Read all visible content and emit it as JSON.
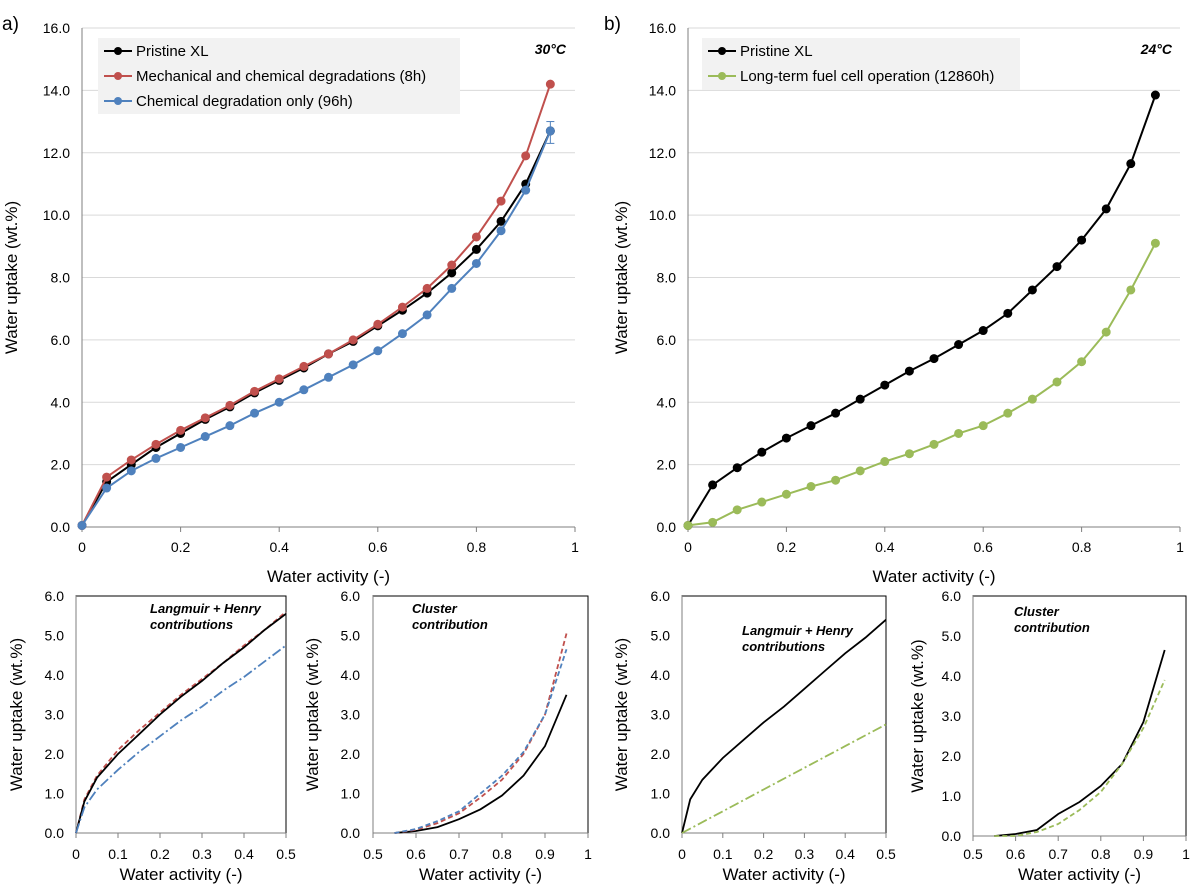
{
  "chart_data": [
    {
      "type": "line",
      "panel_label": "a)",
      "title": "30°C",
      "xlabel": "Water activity (-)",
      "ylabel": "Water uptake (wt.%)",
      "xlim": [
        0,
        1
      ],
      "ylim": [
        0,
        16
      ],
      "x_ticks": [
        "0",
        "0.2",
        "0.4",
        "0.6",
        "0.8",
        "1"
      ],
      "y_ticks": [
        "0.0",
        "2.0",
        "4.0",
        "6.0",
        "8.0",
        "10.0",
        "12.0",
        "14.0",
        "16.0"
      ],
      "grid": "horizontal",
      "legend_position": "top-left",
      "series": [
        {
          "name": "Pristine XL",
          "color": "#000000",
          "x": [
            0,
            0.05,
            0.1,
            0.15,
            0.2,
            0.25,
            0.3,
            0.35,
            0.4,
            0.45,
            0.5,
            0.55,
            0.6,
            0.65,
            0.7,
            0.75,
            0.8,
            0.85,
            0.9,
            0.95
          ],
          "y": [
            0.05,
            1.45,
            2.0,
            2.55,
            3.0,
            3.45,
            3.85,
            4.3,
            4.7,
            5.1,
            5.55,
            5.95,
            6.45,
            6.95,
            7.5,
            8.15,
            8.9,
            9.8,
            11.0,
            12.7
          ]
        },
        {
          "name": "Mechanical and chemical degradations (8h)",
          "color": "#c0504d",
          "x": [
            0,
            0.05,
            0.1,
            0.15,
            0.2,
            0.25,
            0.3,
            0.35,
            0.4,
            0.45,
            0.5,
            0.55,
            0.6,
            0.65,
            0.7,
            0.75,
            0.8,
            0.85,
            0.9,
            0.95
          ],
          "y": [
            0.05,
            1.6,
            2.15,
            2.65,
            3.1,
            3.5,
            3.9,
            4.35,
            4.75,
            5.15,
            5.55,
            6.0,
            6.5,
            7.05,
            7.65,
            8.4,
            9.3,
            10.45,
            11.9,
            14.2
          ]
        },
        {
          "name": "Chemical degradation only (96h)",
          "color": "#4f81bd",
          "x": [
            0,
            0.05,
            0.1,
            0.15,
            0.2,
            0.25,
            0.3,
            0.35,
            0.4,
            0.45,
            0.5,
            0.55,
            0.6,
            0.65,
            0.7,
            0.75,
            0.8,
            0.85,
            0.9,
            0.95
          ],
          "y": [
            0.05,
            1.25,
            1.8,
            2.2,
            2.55,
            2.9,
            3.25,
            3.65,
            4.0,
            4.4,
            4.8,
            5.2,
            5.65,
            6.2,
            6.8,
            7.65,
            8.45,
            9.5,
            10.8,
            12.7
          ]
        }
      ]
    },
    {
      "type": "line",
      "panel_label": "b)",
      "title": "24°C",
      "xlabel": "Water activity (-)",
      "ylabel": "Water uptake (wt.%)",
      "xlim": [
        0,
        1
      ],
      "ylim": [
        0,
        16
      ],
      "x_ticks": [
        "0",
        "0.2",
        "0.4",
        "0.6",
        "0.8",
        "1"
      ],
      "y_ticks": [
        "0.0",
        "2.0",
        "4.0",
        "6.0",
        "8.0",
        "10.0",
        "12.0",
        "14.0",
        "16.0"
      ],
      "grid": "horizontal",
      "legend_position": "top-left",
      "series": [
        {
          "name": "Pristine XL",
          "color": "#000000",
          "x": [
            0,
            0.05,
            0.1,
            0.15,
            0.2,
            0.25,
            0.3,
            0.35,
            0.4,
            0.45,
            0.5,
            0.55,
            0.6,
            0.65,
            0.7,
            0.75,
            0.8,
            0.85,
            0.9,
            0.95
          ],
          "y": [
            0.05,
            1.35,
            1.9,
            2.4,
            2.85,
            3.25,
            3.65,
            4.1,
            4.55,
            5.0,
            5.4,
            5.85,
            6.3,
            6.85,
            7.6,
            8.35,
            9.2,
            10.2,
            11.65,
            13.85
          ]
        },
        {
          "name": "Long-term fuel cell operation (12860h)",
          "color": "#9bbb59",
          "x": [
            0,
            0.05,
            0.1,
            0.15,
            0.2,
            0.25,
            0.3,
            0.35,
            0.4,
            0.45,
            0.5,
            0.55,
            0.6,
            0.65,
            0.7,
            0.75,
            0.8,
            0.85,
            0.9,
            0.95
          ],
          "y": [
            0.05,
            0.15,
            0.55,
            0.8,
            1.05,
            1.3,
            1.5,
            1.8,
            2.1,
            2.35,
            2.65,
            3.0,
            3.25,
            3.65,
            4.1,
            4.65,
            5.3,
            6.25,
            7.6,
            9.1
          ]
        }
      ]
    },
    {
      "type": "line",
      "title": "Langmuir + Henry\ncontributions",
      "xlabel": "Water activity (-)",
      "ylabel": "Water uptake (wt.%)",
      "xlim": [
        0,
        0.5
      ],
      "ylim": [
        0,
        6
      ],
      "x_ticks": [
        "0",
        "0.1",
        "0.2",
        "0.3",
        "0.4",
        "0.5"
      ],
      "y_ticks": [
        "0.0",
        "1.0",
        "2.0",
        "3.0",
        "4.0",
        "5.0",
        "6.0"
      ],
      "series": [
        {
          "color": "#c0504d",
          "dash": "5,3",
          "x": [
            0,
            0.02,
            0.05,
            0.1,
            0.15,
            0.2,
            0.25,
            0.3,
            0.35,
            0.4,
            0.45,
            0.5
          ],
          "y": [
            0,
            0.85,
            1.45,
            2.1,
            2.6,
            3.05,
            3.5,
            3.9,
            4.3,
            4.75,
            5.15,
            5.6
          ]
        },
        {
          "color": "#000000",
          "x": [
            0,
            0.02,
            0.05,
            0.1,
            0.15,
            0.2,
            0.25,
            0.3,
            0.35,
            0.4,
            0.45,
            0.5
          ],
          "y": [
            0,
            0.8,
            1.4,
            2.0,
            2.5,
            3.0,
            3.45,
            3.85,
            4.3,
            4.7,
            5.15,
            5.55
          ]
        },
        {
          "color": "#4f81bd",
          "dash": "10,3,2,3",
          "x": [
            0,
            0.02,
            0.05,
            0.1,
            0.15,
            0.2,
            0.25,
            0.3,
            0.35,
            0.4,
            0.45,
            0.5
          ],
          "y": [
            0,
            0.65,
            1.1,
            1.6,
            2.05,
            2.45,
            2.85,
            3.2,
            3.6,
            3.95,
            4.35,
            4.75
          ]
        }
      ]
    },
    {
      "type": "line",
      "title": "Cluster\ncontribution",
      "xlabel": "Water activity (-)",
      "ylabel": "Water uptake (wt.%)",
      "xlim": [
        0.5,
        1
      ],
      "ylim": [
        0,
        6
      ],
      "x_ticks": [
        "0.5",
        "0.6",
        "0.7",
        "0.8",
        "0.9",
        "1"
      ],
      "y_ticks": [
        "0.0",
        "1.0",
        "2.0",
        "3.0",
        "4.0",
        "5.0",
        "6.0"
      ],
      "series": [
        {
          "color": "#000000",
          "x": [
            0.55,
            0.6,
            0.65,
            0.7,
            0.75,
            0.8,
            0.85,
            0.9,
            0.95
          ],
          "y": [
            0,
            0.05,
            0.15,
            0.35,
            0.6,
            0.95,
            1.45,
            2.2,
            3.5
          ]
        },
        {
          "color": "#c0504d",
          "dash": "5,3",
          "x": [
            0.55,
            0.6,
            0.65,
            0.7,
            0.75,
            0.8,
            0.85,
            0.9,
            0.95
          ],
          "y": [
            0,
            0.08,
            0.25,
            0.5,
            0.9,
            1.35,
            2.0,
            3.0,
            5.05
          ]
        },
        {
          "color": "#4f81bd",
          "dash": "5,3",
          "x": [
            0.55,
            0.6,
            0.65,
            0.7,
            0.75,
            0.8,
            0.85,
            0.9,
            0.95
          ],
          "y": [
            0,
            0.1,
            0.3,
            0.55,
            1.0,
            1.45,
            2.05,
            3.0,
            4.65
          ]
        }
      ]
    },
    {
      "type": "line",
      "title": "Langmuir + Henry\ncontributions",
      "xlabel": "Water activity (-)",
      "ylabel": "Water uptake (wt.%)",
      "xlim": [
        0,
        0.5
      ],
      "ylim": [
        0,
        6
      ],
      "x_ticks": [
        "0",
        "0.1",
        "0.2",
        "0.3",
        "0.4",
        "0.5"
      ],
      "y_ticks": [
        "0.0",
        "1.0",
        "2.0",
        "3.0",
        "4.0",
        "5.0",
        "6.0"
      ],
      "series": [
        {
          "color": "#000000",
          "x": [
            0,
            0.02,
            0.05,
            0.1,
            0.15,
            0.2,
            0.25,
            0.3,
            0.35,
            0.4,
            0.45,
            0.5
          ],
          "y": [
            0,
            0.85,
            1.35,
            1.9,
            2.35,
            2.8,
            3.2,
            3.65,
            4.1,
            4.55,
            4.95,
            5.4
          ]
        },
        {
          "color": "#9bbb59",
          "dash": "10,3,2,3",
          "x": [
            0,
            0.1,
            0.2,
            0.3,
            0.4,
            0.5
          ],
          "y": [
            0,
            0.55,
            1.1,
            1.65,
            2.2,
            2.75
          ]
        }
      ]
    },
    {
      "type": "line",
      "title": "Cluster\ncontribution",
      "xlabel": "Water activity (-)",
      "ylabel": "Water uptake (wt.%)",
      "xlim": [
        0.5,
        1
      ],
      "ylim": [
        0,
        6
      ],
      "x_ticks": [
        "0.5",
        "0.6",
        "0.7",
        "0.8",
        "0.9",
        "1"
      ],
      "y_ticks": [
        "0.0",
        "1.0",
        "2.0",
        "3.0",
        "4.0",
        "5.0",
        "6.0"
      ],
      "series": [
        {
          "color": "#000000",
          "x": [
            0.55,
            0.6,
            0.65,
            0.7,
            0.75,
            0.8,
            0.85,
            0.9,
            0.95
          ],
          "y": [
            0,
            0.05,
            0.15,
            0.55,
            0.85,
            1.25,
            1.8,
            2.85,
            4.65
          ]
        },
        {
          "color": "#9bbb59",
          "dash": "5,3",
          "x": [
            0.55,
            0.6,
            0.65,
            0.7,
            0.75,
            0.8,
            0.85,
            0.9,
            0.95
          ],
          "y": [
            0,
            0.0,
            0.1,
            0.3,
            0.65,
            1.1,
            1.8,
            2.7,
            3.9
          ]
        }
      ]
    }
  ]
}
